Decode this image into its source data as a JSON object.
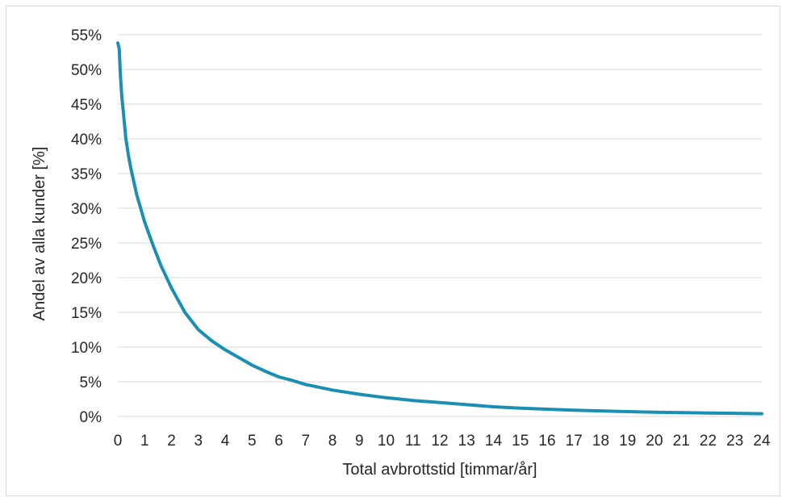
{
  "chart_data": {
    "type": "line",
    "title": "",
    "xlabel": "Total avbrottstid [timmar/år]",
    "ylabel": "Andel av alla kunder [%]",
    "xlim": [
      0,
      24
    ],
    "ylim": [
      0,
      55
    ],
    "x_ticks": [
      "0",
      "1",
      "2",
      "3",
      "4",
      "5",
      "6",
      "7",
      "8",
      "9",
      "10",
      "11",
      "12",
      "13",
      "14",
      "15",
      "16",
      "17",
      "18",
      "19",
      "20",
      "21",
      "22",
      "23",
      "24"
    ],
    "y_ticks": [
      "0%",
      "5%",
      "10%",
      "15%",
      "20%",
      "25%",
      "30%",
      "35%",
      "40%",
      "45%",
      "50%",
      "55%"
    ],
    "grid": "horizontal",
    "legend": "none",
    "color": "#1b8fb3",
    "series": [
      {
        "x": [
          0,
          0.05,
          0.1,
          0.15,
          0.2,
          0.3,
          0.4,
          0.5,
          0.7,
          1,
          1.3,
          1.6,
          2,
          2.5,
          3,
          3.5,
          4,
          4.5,
          5,
          5.5,
          6,
          6.5,
          7,
          8,
          9,
          10,
          11,
          12,
          13,
          14,
          15,
          16,
          17,
          18,
          19,
          20,
          21,
          22,
          23,
          24
        ],
        "values": [
          53.8,
          53,
          49,
          46,
          44,
          40,
          37.5,
          35.5,
          32,
          28,
          24.8,
          21.8,
          18.5,
          15,
          12.5,
          10.9,
          9.6,
          8.5,
          7.4,
          6.5,
          5.7,
          5.2,
          4.6,
          3.8,
          3.2,
          2.7,
          2.3,
          2.0,
          1.7,
          1.4,
          1.2,
          1.05,
          0.9,
          0.8,
          0.7,
          0.6,
          0.55,
          0.5,
          0.45,
          0.4
        ]
      }
    ]
  }
}
